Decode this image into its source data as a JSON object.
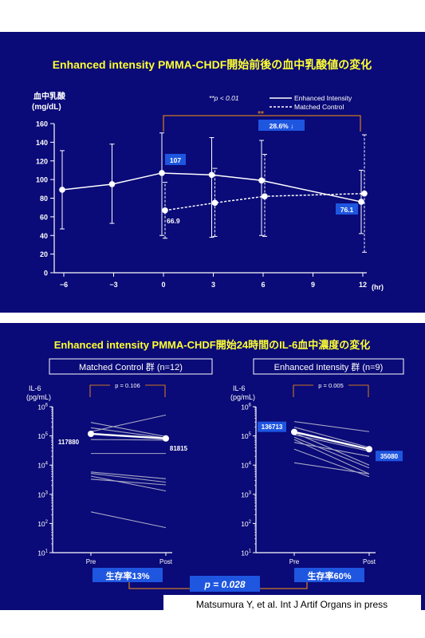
{
  "colors": {
    "background": "#0a0a78",
    "title": "#ffff33",
    "foreground": "#ffffff",
    "annotation": "#cc7722",
    "badge": "#1e56e0",
    "grey_line": "#a8a8c8"
  },
  "top": {
    "title": "Enhanced intensity PMMA-CHDF開始前後の血中乳酸値の変化",
    "ylabel_line1": "血中乳酸",
    "ylabel_line2": "(mg/dL)",
    "xunit": "(hr)",
    "significance": "**p < 0.01",
    "stars": "**",
    "reduction": "28.6% ↓"
  },
  "bottom": {
    "title": "Enhanced intensity PMMA-CHDF開始24時間のIL-6血中濃度の変化",
    "pvalue_combined": "p = 0.028",
    "citation": "Matsumura Y, et al. Int J Artif Organs in press"
  },
  "chart_data": [
    {
      "type": "line",
      "title": "Enhanced intensity PMMA-CHDF開始前後の血中乳酸値の変化",
      "ylabel": "血中乳酸 (mg/dL)",
      "xlabel": "(hr)",
      "x_ticks": [
        "−6",
        "−3",
        "0",
        "3",
        "6",
        "9",
        "12"
      ],
      "y_ticks": [
        "0",
        "20",
        "40",
        "60",
        "80",
        "100",
        "120",
        "140",
        "160"
      ],
      "xlim": [
        -6,
        12
      ],
      "ylim": [
        0,
        160
      ],
      "legend_position": "top-right",
      "series": [
        {
          "name": "Enhanced Intensity",
          "style": "solid",
          "x": [
            -6,
            -3,
            0,
            3,
            6,
            12
          ],
          "y": [
            89,
            95,
            107,
            105,
            99,
            76.1
          ],
          "err_low": [
            47,
            53,
            40,
            38,
            40,
            42
          ],
          "err_high": [
            131,
            138,
            150,
            145,
            142,
            110
          ]
        },
        {
          "name": "Matched Control",
          "style": "dashed",
          "x": [
            0,
            3,
            6,
            12
          ],
          "y": [
            66.9,
            75,
            82,
            85
          ],
          "err_low": [
            37,
            39,
            39,
            22
          ],
          "err_high": [
            97,
            112,
            127,
            148
          ]
        }
      ],
      "data_labels": [
        {
          "text": "107",
          "boxed": true
        },
        {
          "text": "66.9",
          "boxed": false
        },
        {
          "text": "76.1",
          "boxed": true
        }
      ]
    },
    {
      "type": "line",
      "title": "Matched Control 群 (n=12)",
      "ylabel_line1": "IL-6",
      "ylabel_line2": "(pg/mL)",
      "scale": "log",
      "ylim_exp": [
        1,
        6
      ],
      "categories": [
        "Pre",
        "Post"
      ],
      "pvalue": "p = 0.106",
      "mean": [
        117880,
        81815
      ],
      "mean_labels": [
        "117880",
        "81815"
      ],
      "individual_lines": [
        [
          140000,
          520000
        ],
        [
          290000,
          95000
        ],
        [
          190000,
          85000
        ],
        [
          75000,
          72000
        ],
        [
          25000,
          25000
        ],
        [
          5800,
          3400
        ],
        [
          5200,
          2600
        ],
        [
          4200,
          1300
        ],
        [
          3300,
          2100
        ],
        [
          250,
          72
        ]
      ],
      "survival_label": "生存率13%"
    },
    {
      "type": "line",
      "title": "Enhanced Intensity 群 (n=9)",
      "ylabel_line1": "IL-6",
      "ylabel_line2": "(pg/mL)",
      "scale": "log",
      "ylim_exp": [
        1,
        6
      ],
      "categories": [
        "Pre",
        "Post"
      ],
      "pvalue": "p = 0.005",
      "mean": [
        136713,
        35080
      ],
      "mean_labels": [
        "136713",
        "35080"
      ],
      "individual_lines": [
        [
          310000,
          140000
        ],
        [
          200000,
          40000
        ],
        [
          130000,
          10000
        ],
        [
          110000,
          30000
        ],
        [
          90000,
          8000
        ],
        [
          75000,
          5000
        ],
        [
          35000,
          4000
        ],
        [
          60000,
          20000
        ],
        [
          12000,
          5000
        ]
      ],
      "survival_label": "生存率60%"
    }
  ]
}
